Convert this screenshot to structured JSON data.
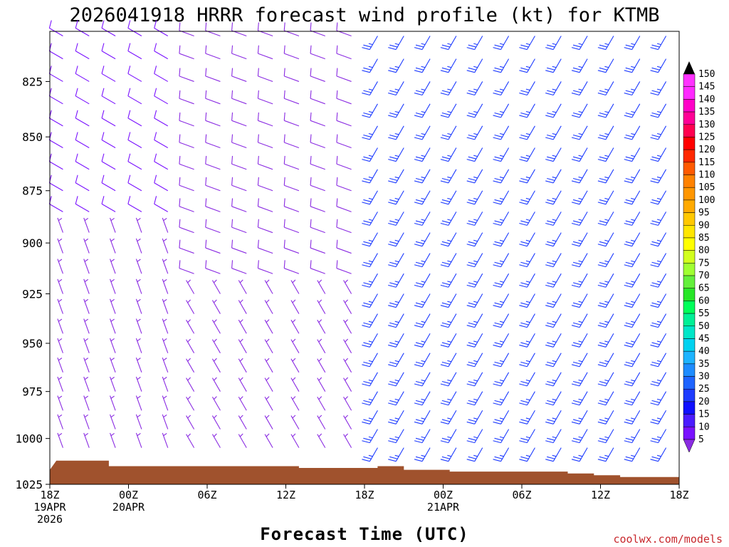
{
  "page": {
    "title": "2026041918 HRRR forecast wind profile (kt) for KTMB",
    "credit": "coolwx.com/models"
  },
  "chart_data": {
    "type": "wind-barb-profile",
    "title": "2026041918 HRRR forecast wind profile (kt) for KTMB",
    "xlabel": "Forecast Time (UTC)",
    "ylabel": "",
    "ylim": [
      1025,
      803
    ],
    "yticks": [
      825,
      850,
      875,
      900,
      925,
      950,
      975,
      1000,
      1025
    ],
    "xlim": [
      0,
      48
    ],
    "xticks": [
      {
        "h": 0,
        "lines": [
          "18Z",
          "19APR",
          "2026"
        ]
      },
      {
        "h": 6,
        "lines": [
          "00Z",
          "20APR"
        ]
      },
      {
        "h": 12,
        "lines": [
          "06Z"
        ]
      },
      {
        "h": 18,
        "lines": [
          "12Z"
        ]
      },
      {
        "h": 24,
        "lines": [
          "18Z"
        ]
      },
      {
        "h": 30,
        "lines": [
          "00Z",
          "21APR"
        ]
      },
      {
        "h": 36,
        "lines": [
          "06Z"
        ]
      },
      {
        "h": 42,
        "lines": [
          "12Z"
        ]
      },
      {
        "h": 48,
        "lines": [
          "18Z"
        ]
      }
    ],
    "colorbar": {
      "label_units": "kt",
      "levels": [
        5,
        10,
        15,
        20,
        25,
        30,
        35,
        40,
        45,
        50,
        55,
        60,
        65,
        70,
        75,
        80,
        85,
        90,
        95,
        100,
        105,
        110,
        115,
        120,
        125,
        130,
        135,
        140,
        145,
        150
      ],
      "colors": [
        "#8a2be2",
        "#7a12ff",
        "#4b1cff",
        "#1010ff",
        "#1e3cff",
        "#1e64ff",
        "#1e8cff",
        "#1eb4ff",
        "#00d2f0",
        "#00e6c8",
        "#00f096",
        "#00ff5a",
        "#28e628",
        "#64f03c",
        "#a0ff32",
        "#d2ff1e",
        "#ffff00",
        "#ffe600",
        "#ffc800",
        "#ffaa00",
        "#ff9600",
        "#ff8200",
        "#ff5a00",
        "#ff2800",
        "#ff0000",
        "#ff0050",
        "#ff0096",
        "#ff00c8",
        "#ff28ff",
        "#ff32ff"
      ]
    },
    "terrain_pressure": [
      {
        "h": 0,
        "p": 1017
      },
      {
        "h": 0.5,
        "p": 1012
      },
      {
        "h": 4.5,
        "p": 1012
      },
      {
        "h": 4.5,
        "p": 1015
      },
      {
        "h": 19,
        "p": 1015
      },
      {
        "h": 19,
        "p": 1016
      },
      {
        "h": 25,
        "p": 1016
      },
      {
        "h": 25,
        "p": 1015
      },
      {
        "h": 27,
        "p": 1015
      },
      {
        "h": 27,
        "p": 1017
      },
      {
        "h": 30.5,
        "p": 1017
      },
      {
        "h": 30.5,
        "p": 1018
      },
      {
        "h": 39.5,
        "p": 1018
      },
      {
        "h": 39.5,
        "p": 1019
      },
      {
        "h": 41.5,
        "p": 1019
      },
      {
        "h": 41.5,
        "p": 1020
      },
      {
        "h": 43.5,
        "p": 1020
      },
      {
        "h": 43.5,
        "p": 1021
      },
      {
        "h": 48,
        "p": 1021
      }
    ],
    "terrain_color": "#a0522d",
    "barb_hours": [
      1,
      3,
      5,
      7,
      9,
      11,
      13,
      15,
      17,
      19,
      21,
      23,
      25,
      27,
      29,
      31,
      33,
      35,
      37,
      39,
      41,
      43,
      45,
      47
    ],
    "barb_levels": [
      805,
      815,
      825,
      835,
      845,
      855,
      865,
      875,
      885,
      895,
      905,
      915,
      925,
      935,
      945,
      955,
      965,
      975,
      985,
      995,
      1005
    ],
    "wind_regimes": [
      {
        "h_from": 0,
        "h_to": 10,
        "p_from": 803,
        "p_to": 890,
        "dir_deg": 300,
        "speed_kt": 10
      },
      {
        "h_from": 0,
        "h_to": 10,
        "p_from": 890,
        "p_to": 1025,
        "dir_deg": 340,
        "speed_kt": 7
      },
      {
        "h_from": 10,
        "h_to": 25,
        "p_from": 803,
        "p_to": 920,
        "dir_deg": 290,
        "speed_kt": 9
      },
      {
        "h_from": 10,
        "h_to": 25,
        "p_from": 920,
        "p_to": 1025,
        "dir_deg": 330,
        "speed_kt": 6
      },
      {
        "h_from": 25,
        "h_to": 48,
        "p_from": 803,
        "p_to": 1025,
        "dir_deg": 210,
        "speed_kt": 25
      }
    ]
  }
}
